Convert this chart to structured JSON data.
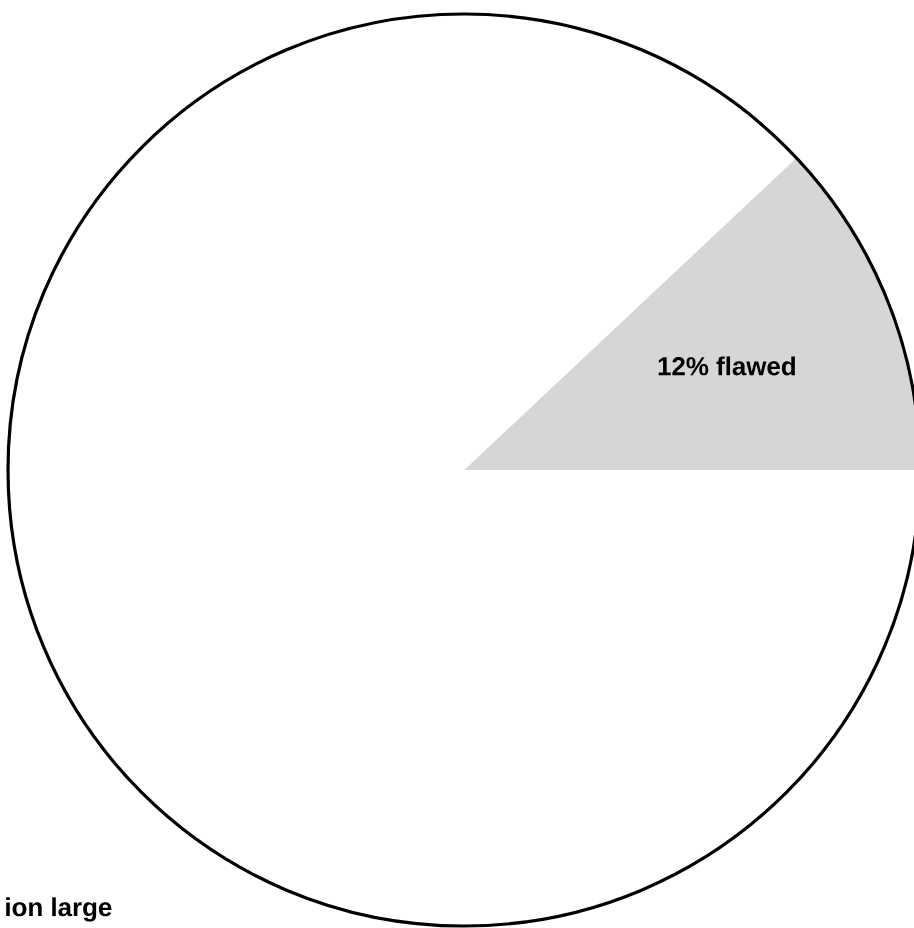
{
  "chart_data": {
    "type": "pie",
    "categories": [
      null,
      null
    ],
    "values": [
      12,
      88
    ],
    "colors": [
      "#d6d6d6",
      "#ffffff"
    ],
    "value_labels": [
      "12% flawed",
      null
    ],
    "annotations": [
      "ion large"
    ]
  }
}
